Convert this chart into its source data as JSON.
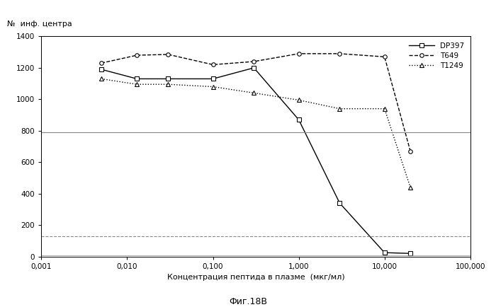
{
  "title_y": "№  инф. центра",
  "xlabel": "Концентрация пептида в плазме  (мкг/мл)",
  "caption": "Фиг.18B",
  "ylim": [
    0,
    1400
  ],
  "yticks": [
    0,
    200,
    400,
    600,
    800,
    1000,
    1200,
    1400
  ],
  "xtick_labels": [
    "0,001",
    "0,010",
    "0,100",
    "1,000",
    "10,000",
    "100,000"
  ],
  "xtick_values": [
    0.001,
    0.01,
    0.1,
    1.0,
    10.0,
    100.0
  ],
  "DP397": {
    "x": [
      0.005,
      0.013,
      0.03,
      0.1,
      0.3,
      1.0,
      3.0,
      10.0,
      20.0
    ],
    "y": [
      1190,
      1130,
      1130,
      1130,
      1200,
      870,
      340,
      25,
      20
    ],
    "color": "#000000",
    "linestyle": "-",
    "marker": "s",
    "label": "DP397"
  },
  "T649": {
    "x": [
      0.005,
      0.013,
      0.03,
      0.1,
      0.3,
      1.0,
      3.0,
      10.0,
      20.0
    ],
    "y": [
      1230,
      1280,
      1285,
      1220,
      1240,
      1290,
      1290,
      1270,
      670
    ],
    "color": "#000000",
    "linestyle": "--",
    "marker": "o",
    "label": "T649"
  },
  "T1249": {
    "x": [
      0.005,
      0.013,
      0.03,
      0.1,
      0.3,
      1.0,
      3.0,
      10.0,
      20.0
    ],
    "y": [
      1130,
      1095,
      1095,
      1080,
      1040,
      995,
      940,
      940,
      440
    ],
    "color": "#000000",
    "linestyle": ":",
    "marker": "^",
    "label": "T1249"
  },
  "hlines": [
    {
      "y": 790,
      "linestyle": "-",
      "color": "#888888",
      "linewidth": 0.8
    },
    {
      "y": 130,
      "linestyle": "--",
      "color": "#888888",
      "linewidth": 0.8
    },
    {
      "y": 8,
      "linestyle": "-",
      "color": "#888888",
      "linewidth": 0.5
    }
  ]
}
